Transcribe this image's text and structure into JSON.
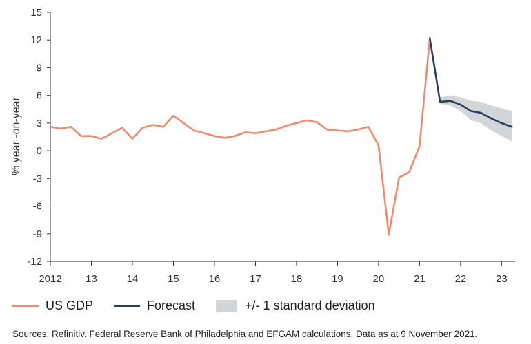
{
  "chart_data": {
    "type": "line",
    "ylabel": "% year -on-year",
    "ylim": [
      -12,
      15
    ],
    "yticks": [
      15,
      12,
      9,
      6,
      3,
      0,
      -3,
      -6,
      -9,
      -12
    ],
    "xlim": [
      2012,
      2023.33
    ],
    "xticks": [
      {
        "value": 2012,
        "label": "2012"
      },
      {
        "value": 2013,
        "label": "13"
      },
      {
        "value": 2014,
        "label": "14"
      },
      {
        "value": 2015,
        "label": "15"
      },
      {
        "value": 2016,
        "label": "16"
      },
      {
        "value": 2017,
        "label": "17"
      },
      {
        "value": 2018,
        "label": "18"
      },
      {
        "value": 2019,
        "label": "19"
      },
      {
        "value": 2020,
        "label": "20"
      },
      {
        "value": 2021,
        "label": "21"
      },
      {
        "value": 2022,
        "label": "22"
      },
      {
        "value": 2023,
        "label": "23"
      }
    ],
    "series": [
      {
        "name": "US GDP",
        "color": "#f08a6c",
        "x": [
          2012.0,
          2012.25,
          2012.5,
          2012.75,
          2013.0,
          2013.25,
          2013.5,
          2013.75,
          2014.0,
          2014.25,
          2014.5,
          2014.75,
          2015.0,
          2015.25,
          2015.5,
          2015.75,
          2016.0,
          2016.25,
          2016.5,
          2016.75,
          2017.0,
          2017.25,
          2017.5,
          2017.75,
          2018.0,
          2018.25,
          2018.5,
          2018.75,
          2019.0,
          2019.25,
          2019.5,
          2019.75,
          2020.0,
          2020.25,
          2020.5,
          2020.75,
          2021.0,
          2021.25
        ],
        "values": [
          2.6,
          2.4,
          2.6,
          1.6,
          1.6,
          1.3,
          1.9,
          2.5,
          1.3,
          2.5,
          2.8,
          2.6,
          3.8,
          3.0,
          2.2,
          1.9,
          1.6,
          1.4,
          1.6,
          2.0,
          1.9,
          2.1,
          2.3,
          2.7,
          3.0,
          3.3,
          3.1,
          2.3,
          2.2,
          2.1,
          2.3,
          2.6,
          0.6,
          -9.1,
          -2.9,
          -2.3,
          0.5,
          12.2
        ]
      },
      {
        "name": "Forecast",
        "color": "#2c3e5c",
        "x": [
          2021.25,
          2021.5,
          2021.75,
          2022.0,
          2022.25,
          2022.5,
          2022.75,
          2023.0,
          2023.25
        ],
        "values": [
          12.2,
          5.3,
          5.4,
          5.0,
          4.3,
          4.1,
          3.5,
          3.0,
          2.6
        ]
      }
    ],
    "band": {
      "name": "+/- 1 standard deviation",
      "color": "#d3d6d9",
      "x": [
        2021.5,
        2021.75,
        2022.0,
        2022.25,
        2022.5,
        2022.75,
        2023.0,
        2023.25
      ],
      "upper": [
        5.8,
        6.0,
        5.8,
        5.4,
        5.3,
        4.9,
        4.6,
        4.3
      ],
      "lower": [
        5.1,
        4.9,
        4.3,
        3.3,
        3.0,
        2.2,
        1.6,
        1.0
      ]
    }
  },
  "legend": {
    "gdp_label": "US GDP",
    "forecast_label": "Forecast",
    "band_label": "+/- 1 standard deviation"
  },
  "source": "Sources: Refinitiv, Federal Reserve Bank of Philadelphia and EFGAM calculations. Data as at 9 November 2021."
}
